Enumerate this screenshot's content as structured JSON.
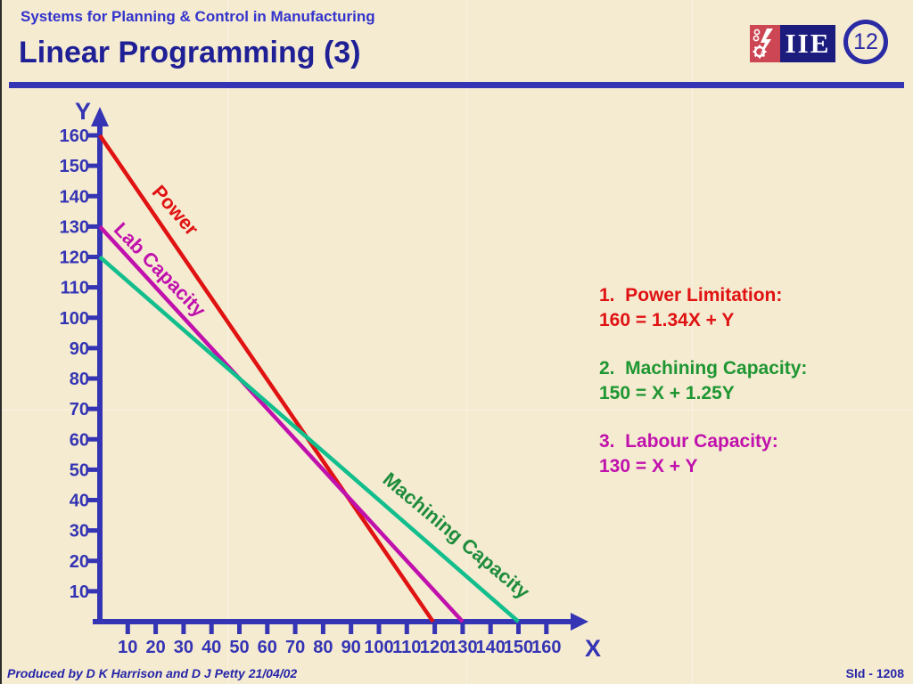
{
  "header": {
    "eyebrow": "Systems for Planning & Control in Manufacturing",
    "title": "Linear Programming (3)",
    "slide_number": "12",
    "logo_text": "IIE"
  },
  "annotations": [
    {
      "heading": "1.  Power Limitation:",
      "equation": "160 = 1.34X + Y",
      "color": "#e01212"
    },
    {
      "heading": "2.  Machining Capacity:",
      "equation": "150 = X + 1.25Y",
      "color": "#1e9632"
    },
    {
      "heading": "3.  Labour Capacity:",
      "equation": "130 = X + Y",
      "color": "#c011ac"
    }
  ],
  "footer": {
    "left": "Produced by D K Harrison and D J Petty 21/04/02",
    "right": "Sld - 1208"
  },
  "chart_data": {
    "type": "line",
    "title": "",
    "xlabel": "X",
    "ylabel": "Y",
    "xlim": [
      0,
      175
    ],
    "ylim": [
      0,
      175
    ],
    "grid": false,
    "legend_position": "labels-on-lines",
    "x_ticks": [
      10,
      20,
      30,
      40,
      50,
      60,
      70,
      80,
      90,
      100,
      110,
      120,
      130,
      140,
      150,
      160
    ],
    "y_ticks": [
      10,
      20,
      30,
      40,
      50,
      60,
      70,
      80,
      90,
      100,
      110,
      120,
      130,
      140,
      150,
      160
    ],
    "axis_color": "#3434b4",
    "series": [
      {
        "name": "Power",
        "color": "#e01212",
        "label_color": "#e01212",
        "equation": "160 = 1.34X + Y",
        "y_intercept": 160,
        "x_intercept": 119.4
      },
      {
        "name": "Lab Capacity",
        "color": "#c011ac",
        "label_color": "#c011ac",
        "equation": "130 = X + Y",
        "y_intercept": 130,
        "x_intercept": 130
      },
      {
        "name": "Machining Capacity",
        "color": "#12be8c",
        "label_color": "#1e8c3c",
        "equation": "150 = X + 1.25Y",
        "y_intercept": 120,
        "x_intercept": 150
      }
    ]
  }
}
